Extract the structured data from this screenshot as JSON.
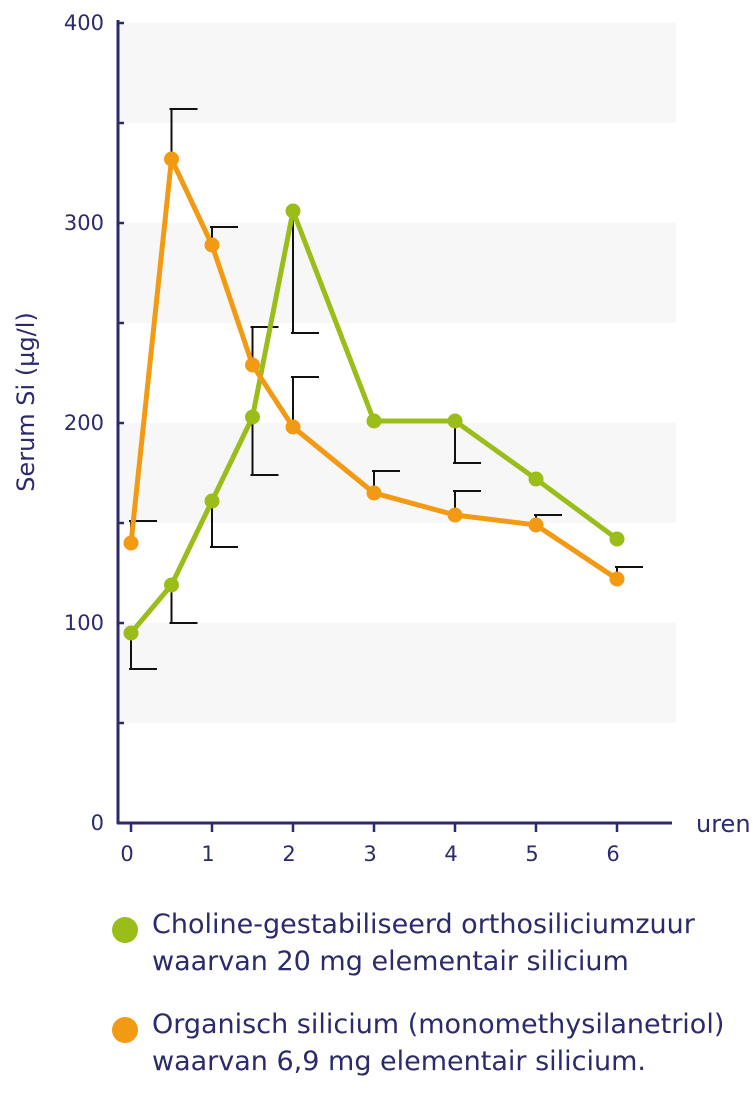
{
  "chart_data": {
    "type": "line",
    "ylabel": "Serum Si (µg/l)",
    "xlabel": "uren",
    "ylim": [
      0,
      400
    ],
    "yticks": [
      0,
      100,
      200,
      300,
      400
    ],
    "xticks": [
      0,
      1,
      2,
      3,
      4,
      5,
      6
    ],
    "grid": "alternating bands",
    "series": [
      {
        "name_line1": "Choline-gestabiliseerd orthosiliciumzuur",
        "name_line2": "waarvan 20 mg elementair silicium",
        "color": "#9bbd1a",
        "x": [
          0,
          0.5,
          1,
          1.5,
          2,
          3,
          4,
          5,
          6
        ],
        "y": [
          95,
          119,
          161,
          203,
          306,
          201,
          201,
          172,
          142
        ],
        "err_bottom": [
          77,
          100,
          138,
          174,
          245,
          null,
          180,
          null,
          null
        ]
      },
      {
        "name_line1": "Organisch silicium (monomethysilanetriol)",
        "name_line2": "waarvan 6,9 mg elementair silicium.",
        "color": "#f29a14",
        "x": [
          0,
          0.5,
          1,
          1.5,
          2,
          3,
          4,
          5,
          6
        ],
        "y": [
          140,
          332,
          289,
          229,
          198,
          165,
          154,
          149,
          122
        ],
        "err_top": [
          151,
          357,
          298,
          248,
          223,
          176,
          166,
          154,
          128
        ]
      }
    ]
  }
}
